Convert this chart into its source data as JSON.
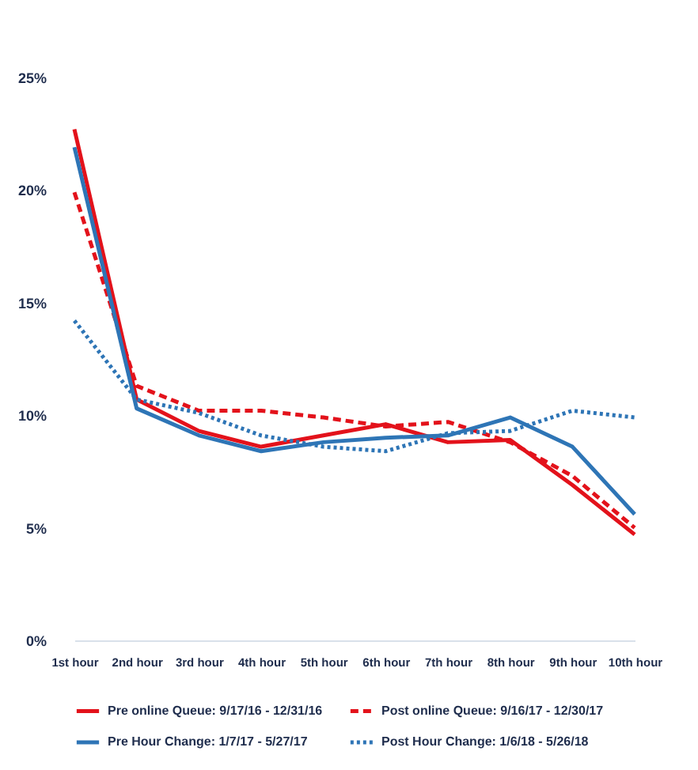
{
  "chart_data": {
    "type": "line",
    "categories": [
      "1st hour",
      "2nd hour",
      "3rd hour",
      "4th hour",
      "5th hour",
      "6th hour",
      "7th hour",
      "8th hour",
      "9th hour",
      "10th hour"
    ],
    "series": [
      {
        "name": "Pre online Queue: 9/17/16 - 12/31/16",
        "color": "#e3121b",
        "line_style": "solid",
        "values": [
          22.7,
          10.7,
          9.3,
          8.6,
          9.1,
          9.6,
          8.8,
          8.9,
          6.9,
          4.7
        ]
      },
      {
        "name": "Post online Queue: 9/16/17 - 12/30/17",
        "color": "#e3121b",
        "line_style": "dashed",
        "values": [
          19.9,
          11.3,
          10.2,
          10.2,
          9.9,
          9.5,
          9.7,
          8.8,
          7.3,
          5.0
        ]
      },
      {
        "name": "Pre Hour Change: 1/7/17 - 5/27/17",
        "color": "#2e75b6",
        "line_style": "solid",
        "values": [
          21.9,
          10.3,
          9.1,
          8.4,
          8.8,
          9.0,
          9.1,
          9.9,
          8.6,
          5.6
        ]
      },
      {
        "name": "Post Hour Change: 1/6/18 - 5/26/18",
        "color": "#2e75b6",
        "line_style": "dotted",
        "values": [
          14.2,
          10.7,
          10.1,
          9.1,
          8.6,
          8.4,
          9.2,
          9.3,
          10.2,
          9.9
        ]
      }
    ],
    "ylim": [
      0,
      25
    ],
    "yticks": [
      {
        "value": 0,
        "label": "0%"
      },
      {
        "value": 5,
        "label": "5%"
      },
      {
        "value": 10,
        "label": "10%"
      },
      {
        "value": 15,
        "label": "15%"
      },
      {
        "value": 20,
        "label": "20%"
      },
      {
        "value": 25,
        "label": "25%"
      }
    ],
    "grid": false,
    "legend": "bottom",
    "marker": "none"
  }
}
